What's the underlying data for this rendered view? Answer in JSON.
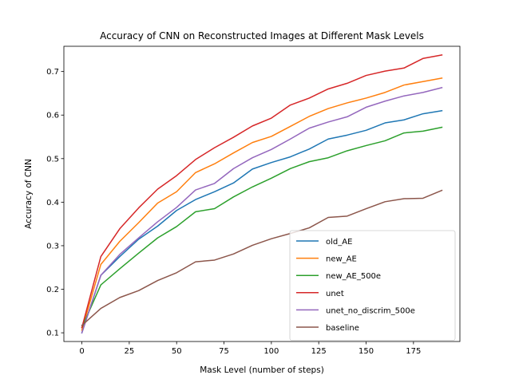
{
  "chart_data": {
    "type": "line",
    "title": "Accuracy of CNN on Reconstructed Images at Different Mask Levels",
    "xlabel": "Mask Level (number of steps)",
    "ylabel": "Accuracy of CNN",
    "xlim": [
      -9.5,
      199.5
    ],
    "ylim": [
      0.08,
      0.758
    ],
    "xticks": [
      0,
      25,
      50,
      75,
      100,
      125,
      150,
      175
    ],
    "yticks": [
      0.1,
      0.2,
      0.3,
      0.4,
      0.5,
      0.6,
      0.7
    ],
    "ytick_labels": [
      "0.1",
      "0.2",
      "0.3",
      "0.4",
      "0.5",
      "0.6",
      "0.7"
    ],
    "grid": false,
    "legend_position": "lower-right",
    "x": [
      0,
      10,
      20,
      30,
      40,
      50,
      60,
      70,
      80,
      90,
      100,
      110,
      120,
      130,
      140,
      150,
      160,
      170,
      180,
      190
    ],
    "series": [
      {
        "name": "old_AE",
        "color": "#1f77b4",
        "values": [
          0.1,
          0.232,
          0.275,
          0.315,
          0.345,
          0.381,
          0.406,
          0.424,
          0.444,
          0.476,
          0.491,
          0.504,
          0.522,
          0.545,
          0.554,
          0.565,
          0.582,
          0.589,
          0.603,
          0.61
        ]
      },
      {
        "name": "new_AE",
        "color": "#ff7f0e",
        "values": [
          0.106,
          0.257,
          0.31,
          0.353,
          0.398,
          0.424,
          0.468,
          0.488,
          0.513,
          0.537,
          0.551,
          0.574,
          0.597,
          0.615,
          0.628,
          0.639,
          0.652,
          0.669,
          0.677,
          0.685
        ]
      },
      {
        "name": "new_AE_500e",
        "color": "#2ca02c",
        "values": [
          0.112,
          0.21,
          0.247,
          0.283,
          0.318,
          0.344,
          0.378,
          0.385,
          0.412,
          0.435,
          0.455,
          0.477,
          0.493,
          0.502,
          0.518,
          0.53,
          0.541,
          0.559,
          0.563,
          0.572
        ]
      },
      {
        "name": "unet",
        "color": "#d62728",
        "values": [
          0.112,
          0.275,
          0.339,
          0.387,
          0.43,
          0.461,
          0.498,
          0.525,
          0.549,
          0.575,
          0.593,
          0.623,
          0.639,
          0.66,
          0.673,
          0.691,
          0.701,
          0.708,
          0.73,
          0.738
        ]
      },
      {
        "name": "unet_no_discrim_500e",
        "color": "#9467bd",
        "values": [
          0.1,
          0.232,
          0.28,
          0.318,
          0.355,
          0.388,
          0.428,
          0.443,
          0.477,
          0.502,
          0.521,
          0.545,
          0.57,
          0.584,
          0.596,
          0.618,
          0.632,
          0.644,
          0.652,
          0.663
        ]
      },
      {
        "name": "baseline",
        "color": "#8c564b",
        "values": [
          0.117,
          0.156,
          0.181,
          0.197,
          0.22,
          0.238,
          0.263,
          0.267,
          0.281,
          0.301,
          0.316,
          0.328,
          0.341,
          0.365,
          0.368,
          0.385,
          0.401,
          0.408,
          0.409,
          0.427
        ]
      }
    ]
  }
}
